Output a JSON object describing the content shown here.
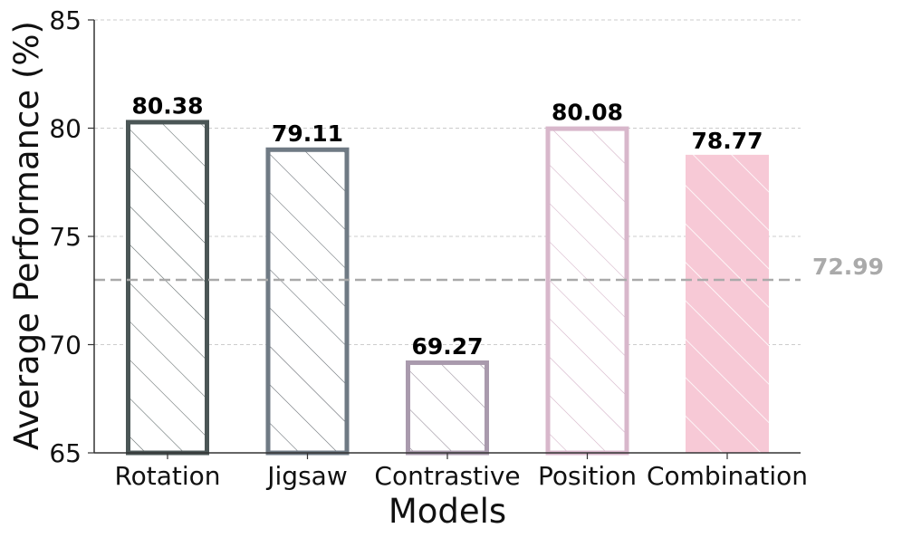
{
  "chart_data": {
    "type": "bar",
    "title": "",
    "xlabel": "Models",
    "ylabel": "Average Performance (%)",
    "categories": [
      "Rotation",
      "Jigsaw",
      "Contrastive",
      "Position",
      "Combination"
    ],
    "values": [
      80.38,
      79.11,
      69.27,
      80.08,
      78.77
    ],
    "value_labels": [
      "80.38",
      "79.11",
      "69.27",
      "80.08",
      "78.77"
    ],
    "ylim": [
      65,
      85
    ],
    "yticks": [
      65,
      70,
      75,
      80,
      85
    ],
    "ytick_labels": [
      "65",
      "70",
      "75",
      "80",
      "85"
    ],
    "grid": "horizontal-dashed",
    "reference_line": {
      "value": 72.99,
      "label": "72.99",
      "color": "#aaaaaa"
    },
    "bar_styles": [
      {
        "edge": "#4b5656",
        "hatch": "#5a6464",
        "fill": "#ffffff",
        "filled": false
      },
      {
        "edge": "#6f7a84",
        "hatch": "#5f666d",
        "fill": "#ffffff",
        "filled": false
      },
      {
        "edge": "#a99aad",
        "hatch": "#8f8493",
        "fill": "#ffffff",
        "filled": false
      },
      {
        "edge": "#d8b7cb",
        "hatch": "#d2aec4",
        "fill": "#ffffff",
        "filled": false
      },
      {
        "edge": "#f7c9d6",
        "hatch": "#ffffff",
        "fill": "#f7c9d6",
        "filled": true
      }
    ]
  }
}
